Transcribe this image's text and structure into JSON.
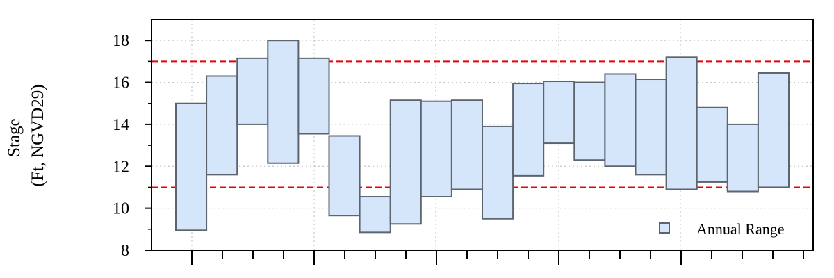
{
  "chart_data": {
    "type": "bar",
    "subtype": "floating-range",
    "ylabel_lines": [
      "Stage",
      "(Ft, NGVD29)"
    ],
    "ylim": [
      8,
      19
    ],
    "yticks": [
      8,
      10,
      12,
      14,
      16,
      18
    ],
    "grid": true,
    "legend_position": "bottom-right",
    "colors": {
      "fill": "#d5e6fb",
      "edge": "#5c6470",
      "reference_line": "#e8000b",
      "grid": "#c8c8c8"
    },
    "reference_lines": [
      11,
      17
    ],
    "series": [
      {
        "name": "Annual Range",
        "ranges": [
          [
            8.95,
            15.0
          ],
          [
            11.6,
            16.3
          ],
          [
            14.0,
            17.15
          ],
          [
            12.15,
            18.0
          ],
          [
            13.55,
            17.15
          ],
          [
            9.65,
            13.45
          ],
          [
            8.85,
            10.55
          ],
          [
            9.25,
            15.15
          ],
          [
            10.55,
            15.1
          ],
          [
            10.9,
            15.15
          ],
          [
            9.5,
            13.9
          ],
          [
            11.55,
            15.95
          ],
          [
            13.1,
            16.05
          ],
          [
            12.3,
            16.0
          ],
          [
            12.0,
            16.4
          ],
          [
            11.6,
            16.15
          ],
          [
            10.9,
            17.2
          ],
          [
            11.25,
            14.8
          ],
          [
            10.8,
            14.0
          ],
          [
            11.0,
            16.45
          ]
        ]
      }
    ]
  }
}
